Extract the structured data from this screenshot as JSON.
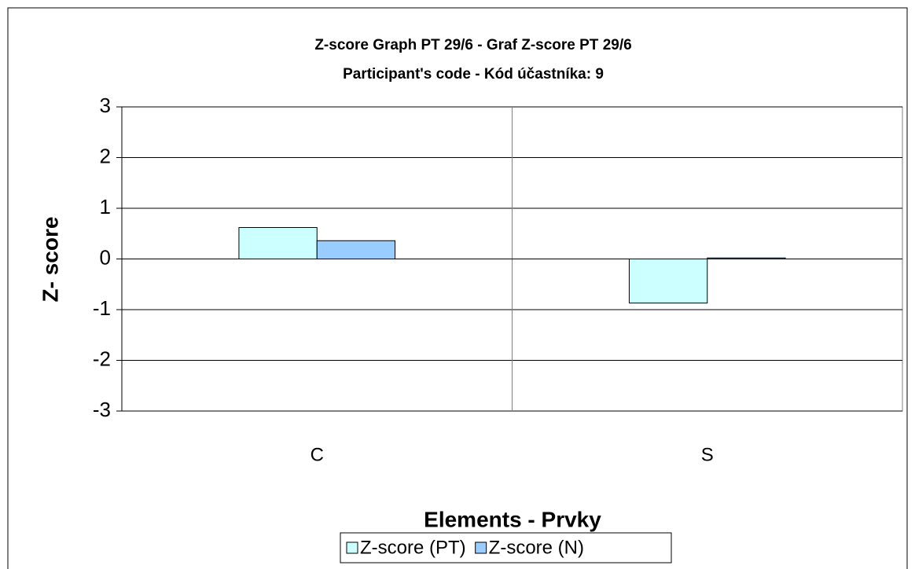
{
  "chart_data": {
    "type": "bar",
    "title": [
      "Z-score Graph PT 29/6 - Graf Z-score PT 29/6",
      "Participant's code - Kód účastníka:  9"
    ],
    "x_label": "Elements - Prvky",
    "y_label": "Z- score",
    "categories": [
      "C",
      "S"
    ],
    "series": [
      {
        "name": "Z-score (PT)",
        "color": "#ccffff",
        "values": [
          0.62,
          -0.87
        ]
      },
      {
        "name": "Z-score (N)",
        "color": "#99ccff",
        "values": [
          0.36,
          0.02
        ]
      }
    ],
    "ylim": [
      -3,
      3
    ],
    "yticks": [
      -3,
      -2,
      -1,
      0,
      1,
      2,
      3
    ],
    "grid": true,
    "legend": "bottom"
  }
}
